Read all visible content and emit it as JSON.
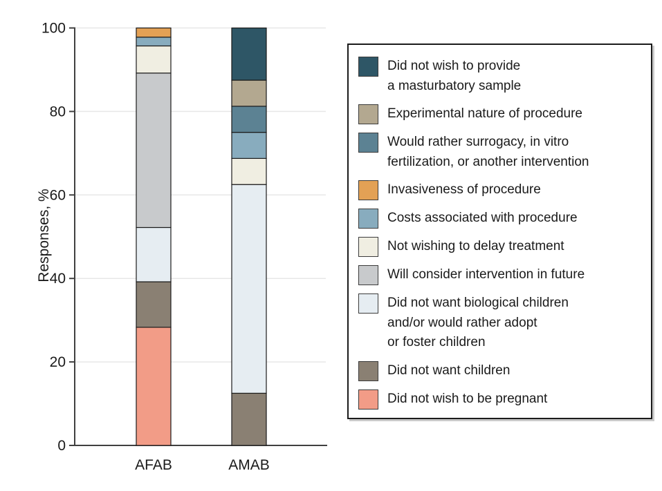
{
  "figure": {
    "kind": "stacked-bar-figure",
    "background": "#ffffff",
    "axis_color": "#3f3f3f",
    "gridline_color": "#e7e7e7",
    "segment_outline_color": "#1a1a1a",
    "text_color": "#1a1a1a"
  },
  "chart_data": {
    "type": "bar",
    "stacked": true,
    "title": "",
    "xlabel": "",
    "ylabel": "Responses, %",
    "ylim": [
      0,
      100
    ],
    "yticks": [
      0,
      20,
      40,
      60,
      80,
      100
    ],
    "grid": "horizontal",
    "legend_position": "right",
    "categories": [
      "AFAB",
      "AMAB"
    ],
    "series": [
      {
        "name": "Did not wish to be pregnant",
        "color": "#F29C87",
        "values": [
          28.3,
          0
        ]
      },
      {
        "name": "Did not want children",
        "color": "#8A8073",
        "values": [
          10.9,
          12.5
        ]
      },
      {
        "name": "Did not want biological children\nand/or would rather adopt\nor foster children",
        "color": "#E6EDF2",
        "values": [
          13.0,
          50.0
        ]
      },
      {
        "name": "Will consider intervention in future",
        "color": "#C8CACC",
        "values": [
          37.0,
          0
        ]
      },
      {
        "name": "Not wishing to delay treatment",
        "color": "#F0EEE2",
        "values": [
          6.5,
          6.25
        ]
      },
      {
        "name": "Costs associated with procedure",
        "color": "#88ACBE",
        "values": [
          2.1,
          6.25
        ]
      },
      {
        "name": "Invasiveness of procedure",
        "color": "#E3A155",
        "values": [
          2.2,
          0
        ]
      },
      {
        "name": "Would rather surrogacy, in vitro\nfertilization, or another intervention",
        "color": "#5C8293",
        "values": [
          0,
          6.25
        ]
      },
      {
        "name": "Experimental nature of procedure",
        "color": "#B3A890",
        "values": [
          0,
          6.25
        ]
      },
      {
        "name": "Did not wish to provide\na masturbatory sample",
        "color": "#2E5666",
        "values": [
          0,
          12.5
        ]
      }
    ]
  }
}
